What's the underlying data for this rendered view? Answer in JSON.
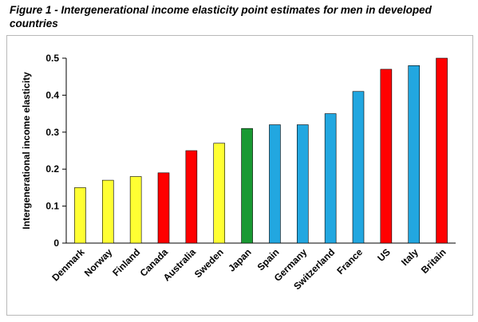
{
  "figure_title": "Figure 1 - Intergenerational income elasticity point estimates for men in developed countries",
  "colors": {
    "yellow": "#ffff33",
    "red": "#ff0000",
    "green": "#1a9933",
    "blue": "#22a7e0"
  },
  "chart_data": {
    "type": "bar",
    "title": "Figure 1 - Intergenerational income elasticity point estimates for men in developed countries",
    "xlabel": "",
    "ylabel": "Intergenerational income elasticity",
    "ylim": [
      0,
      0.5
    ],
    "yticks": [
      "0",
      "0.1",
      "0.2",
      "0.3",
      "0.4",
      "0.5"
    ],
    "grid": false,
    "categories": [
      "Denmark",
      "Norway",
      "Finland",
      "Canada",
      "Australia",
      "Sweden",
      "Japan",
      "Spain",
      "Germany",
      "Switzerland",
      "France",
      "US",
      "Italy",
      "Britain"
    ],
    "values": [
      0.15,
      0.17,
      0.18,
      0.19,
      0.25,
      0.27,
      0.31,
      0.32,
      0.32,
      0.35,
      0.41,
      0.47,
      0.48,
      0.5
    ],
    "bar_colors": [
      "#ffff33",
      "#ffff33",
      "#ffff33",
      "#ff0000",
      "#ff0000",
      "#ffff33",
      "#1a9933",
      "#22a7e0",
      "#22a7e0",
      "#22a7e0",
      "#22a7e0",
      "#ff0000",
      "#22a7e0",
      "#ff0000"
    ]
  }
}
